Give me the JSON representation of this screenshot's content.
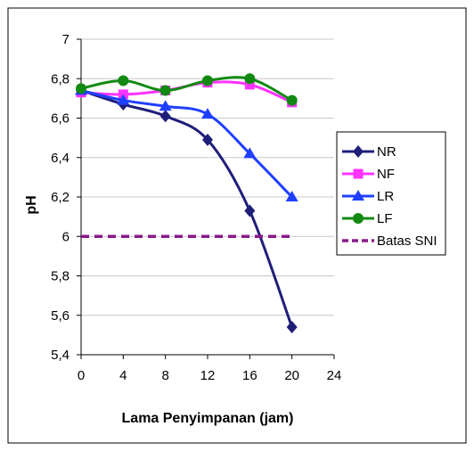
{
  "chart_data": {
    "type": "line",
    "title": "",
    "xlabel": "Lama Penyimpanan (jam)",
    "ylabel": "pH",
    "xlim": [
      0,
      24
    ],
    "ylim": [
      5.4,
      7
    ],
    "xticks": [
      0,
      4,
      8,
      12,
      16,
      20,
      24
    ],
    "xtick_labels": [
      "0",
      "4",
      "8",
      "12",
      "16",
      "20",
      "24"
    ],
    "yticks": [
      5.4,
      5.6,
      5.8,
      6,
      6.2,
      6.4,
      6.6,
      6.8,
      7
    ],
    "ytick_labels": [
      "5,4",
      "5,6",
      "5,8",
      "6",
      "6,2",
      "6,4",
      "6,6",
      "6,8",
      "7"
    ],
    "grid": "horizontal",
    "legend_position": "right",
    "x": [
      0,
      4,
      8,
      12,
      16,
      20
    ],
    "series": [
      {
        "name": "NR",
        "values": [
          6.74,
          6.67,
          6.61,
          6.49,
          6.13,
          5.54
        ],
        "color": "#1f1f7a",
        "marker": "diamond",
        "style": "solid"
      },
      {
        "name": "NF",
        "values": [
          6.73,
          6.72,
          6.74,
          6.78,
          6.77,
          6.68
        ],
        "color": "#ff33ff",
        "marker": "square",
        "style": "solid"
      },
      {
        "name": "LR",
        "values": [
          6.74,
          6.69,
          6.66,
          6.62,
          6.42,
          6.2
        ],
        "color": "#1f3fff",
        "marker": "triangle",
        "style": "solid"
      },
      {
        "name": "LF",
        "values": [
          6.75,
          6.79,
          6.74,
          6.79,
          6.8,
          6.69
        ],
        "color": "#128a12",
        "marker": "circle",
        "style": "solid"
      },
      {
        "name": "Batas SNI",
        "values": [
          6,
          6,
          6,
          6,
          6,
          6
        ],
        "color": "#8a1a8a",
        "marker": "none",
        "style": "dashed"
      }
    ]
  }
}
